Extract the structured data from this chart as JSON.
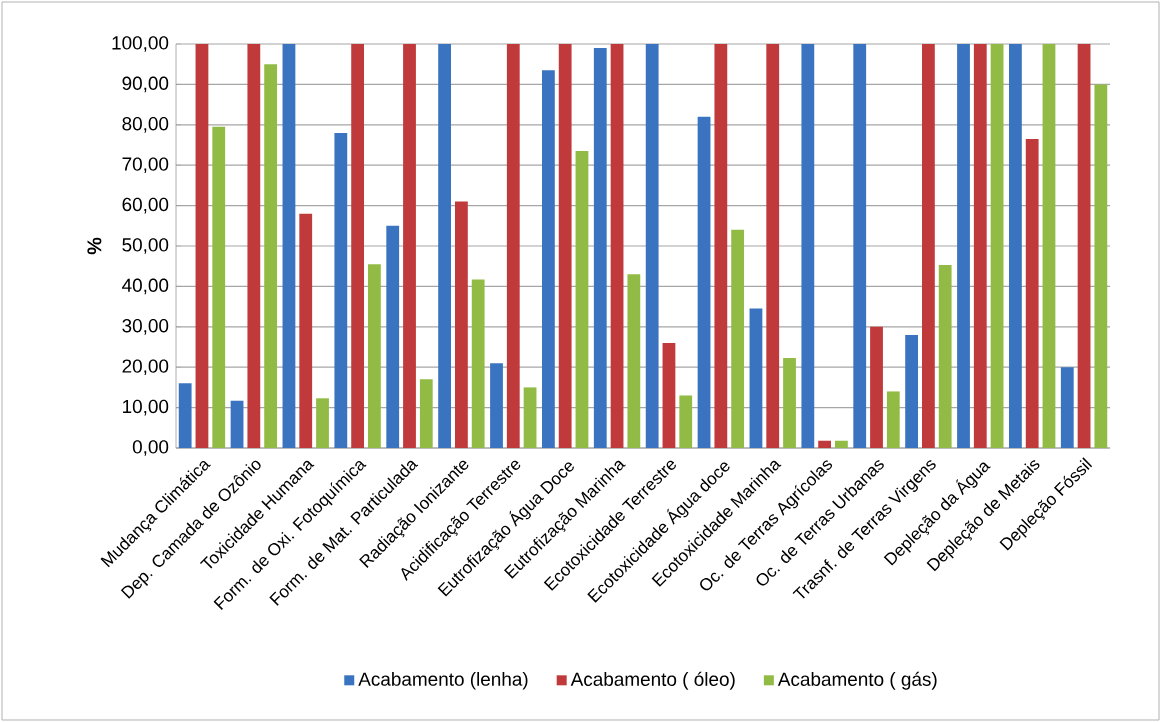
{
  "chart_data": {
    "type": "bar",
    "ylabel": "%",
    "categories": [
      "Mudança Climática",
      "Dep. Camada de Ozônio",
      "Toxicidade Humana",
      "Form. de Oxi. Fotoquímica",
      "Form. de Mat. Particulada",
      "Radiação Ionizante",
      "Acidificação Terrestre",
      "Eutrofização Água Doce",
      "Eutrofização Marinha",
      "Ecotoxicidade Terrestre",
      "Ecotoxicidade Água doce",
      "Ecotoxicidade Marinha",
      "Oc. de Terras Agrícolas",
      "Oc. de Terras Urbanas",
      "Trasnf. de Terras Virgens",
      "Depleção da Água",
      "Depleção de Metais",
      "Depleção Fóssil"
    ],
    "series": [
      {
        "name": "Acabamento (lenha)",
        "color": "#3a73bf",
        "values": [
          16,
          11.7,
          100,
          78,
          55,
          100,
          21,
          93.5,
          99,
          100,
          82,
          34.5,
          100,
          100,
          28,
          100,
          100,
          20
        ]
      },
      {
        "name": "Acabamento ( óleo)",
        "color": "#c0393b",
        "values": [
          100,
          100,
          58,
          100,
          100,
          61,
          100,
          100,
          100,
          26,
          100,
          100,
          1.8,
          30,
          100,
          100,
          76.5,
          100
        ]
      },
      {
        "name": "Acabamento ( gás)",
        "color": "#92bb45",
        "values": [
          79.5,
          95,
          12.3,
          45.5,
          17,
          41.7,
          15,
          73.5,
          43,
          13,
          54,
          22.3,
          1.8,
          14,
          45.3,
          100,
          100,
          90
        ]
      }
    ],
    "ylim": [
      0,
      100
    ],
    "yticks": [
      {
        "value": 0,
        "label": "0,00"
      },
      {
        "value": 10,
        "label": "10,00"
      },
      {
        "value": 20,
        "label": "20,00"
      },
      {
        "value": 30,
        "label": "30,00"
      },
      {
        "value": 40,
        "label": "40,00"
      },
      {
        "value": 50,
        "label": "50,00"
      },
      {
        "value": 60,
        "label": "60,00"
      },
      {
        "value": 70,
        "label": "70,00"
      },
      {
        "value": 80,
        "label": "80,00"
      },
      {
        "value": 90,
        "label": "90,00"
      },
      {
        "value": 100,
        "label": "100,00"
      }
    ],
    "grid": "y",
    "legend": "bottom"
  }
}
